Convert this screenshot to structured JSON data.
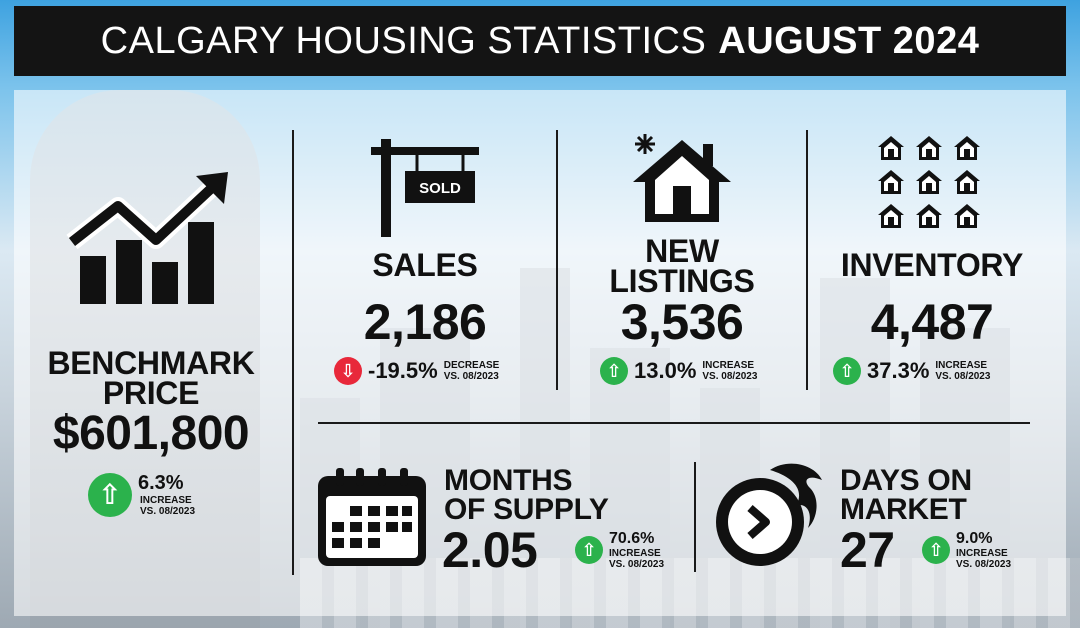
{
  "header": {
    "title_light": "CALGARY HOUSING STATISTICS",
    "title_bold": "AUGUST 2024"
  },
  "benchmark": {
    "label_line1": "BENCHMARK",
    "label_line2": "PRICE",
    "value": "$601,800",
    "change": "6.3%",
    "direction": "up",
    "note_line1": "INCREASE",
    "note_line2": "VS. 08/2023",
    "icon": "chart-up-icon"
  },
  "sales": {
    "label": "SALES",
    "value": "2,186",
    "change": "-19.5%",
    "direction": "down",
    "note_line1": "DECREASE",
    "note_line2": "VS. 08/2023",
    "icon": "sold-sign-icon",
    "sign_text": "SOLD"
  },
  "new_listings": {
    "label_line1": "NEW",
    "label_line2": "LISTINGS",
    "value": "3,536",
    "change": "13.0%",
    "direction": "up",
    "note_line1": "INCREASE",
    "note_line2": "VS. 08/2023",
    "icon": "new-house-icon"
  },
  "inventory": {
    "label": "INVENTORY",
    "value": "4,487",
    "change": "37.3%",
    "direction": "up",
    "note_line1": "INCREASE",
    "note_line2": "VS. 08/2023",
    "icon": "houses-grid-icon"
  },
  "months_supply": {
    "label_line1": "MONTHS",
    "label_line2": "OF SUPPLY",
    "value": "2.05",
    "change": "70.6%",
    "direction": "up",
    "note_line1": "INCREASE",
    "note_line2": "VS. 08/2023",
    "icon": "calendar-icon"
  },
  "days_on_market": {
    "label_line1": "DAYS ON",
    "label_line2": "MARKET",
    "value": "27",
    "change": "9.0%",
    "direction": "up",
    "note_line1": "INCREASE",
    "note_line2": "VS. 08/2023",
    "icon": "fast-clock-icon"
  },
  "colors": {
    "up": "#2bb24c",
    "down": "#e8283a",
    "title_bar": "#141414"
  }
}
